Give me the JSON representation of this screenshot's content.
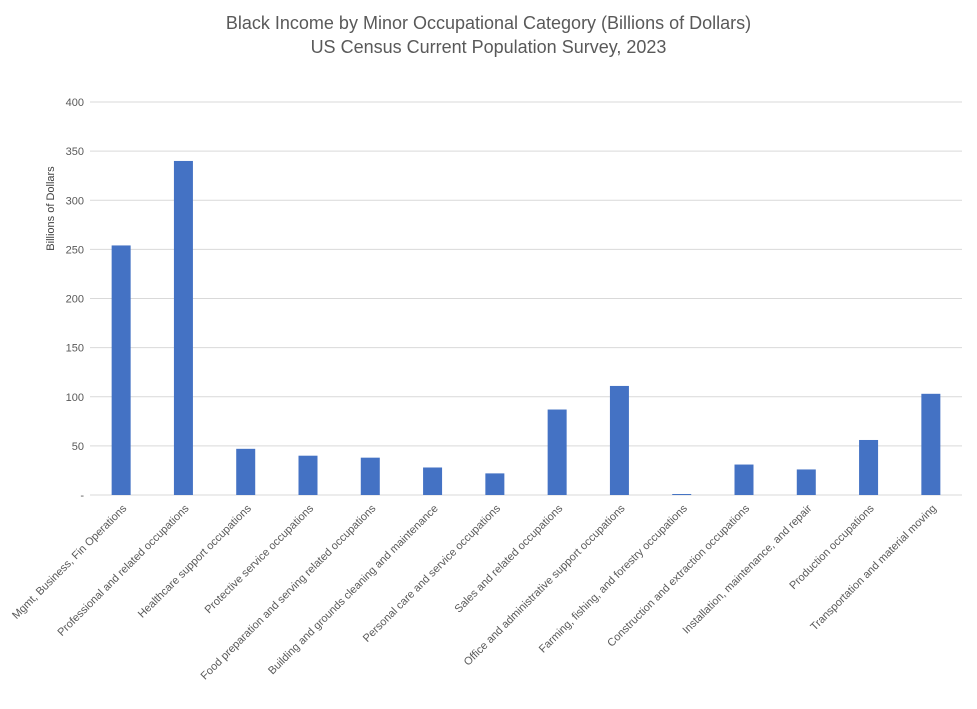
{
  "chart_data": {
    "type": "bar",
    "title": "Black Income by Minor Occupational Category (Billions of Dollars)",
    "subtitle": "US Census Current Population Survey, 2023",
    "ylabel": "Billions of Dollars",
    "xlabel": "",
    "ylim": [
      0,
      400
    ],
    "yticks": [
      0,
      50,
      100,
      150,
      200,
      250,
      300,
      350,
      400
    ],
    "ytick_labels": [
      "-",
      "50",
      "100",
      "150",
      "200",
      "250",
      "300",
      "350",
      "400"
    ],
    "grid": true,
    "legend": "none",
    "bar_color": "#4472c4",
    "categories": [
      "Mgmt, Business, Fin Operations",
      "Professional and related occupations",
      "Healthcare support occupations",
      "Protective service occupations",
      "Food preparation and serving related occupations",
      "Building and grounds cleaning and maintenance",
      "Personal care and service occupations",
      "Sales and related occupations",
      "Office and administrative support occupations",
      "Farming, fishing, and forestry occupations",
      "Construction and extraction occupations",
      "Installation, maintenance, and repair",
      "Production occupations",
      "Transportation and material moving"
    ],
    "values": [
      254,
      340,
      47,
      40,
      38,
      28,
      22,
      87,
      111,
      1,
      31,
      26,
      56,
      103
    ]
  }
}
